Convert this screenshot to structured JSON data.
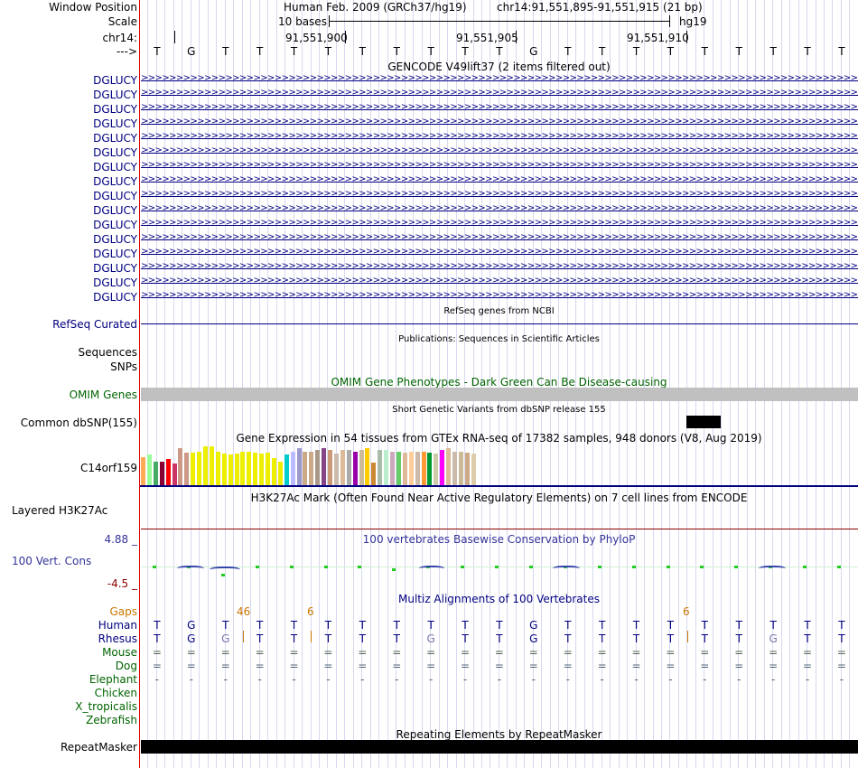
{
  "header": {
    "window_label": "Window Position",
    "assembly": "Human Feb. 2009 (GRCh37/hg19)",
    "region": "chr14:91,551,895-91,551,915 (21 bp)",
    "scale_label": "Scale",
    "scale_text": "10 bases",
    "db": "hg19",
    "chrom_label": "chr14:",
    "ticks": [
      "91,551,900",
      "91,551,905",
      "91,551,910"
    ],
    "strand_label": "--->",
    "bases": [
      "T",
      "G",
      "T",
      "T",
      "T",
      "T",
      "T",
      "T",
      "T",
      "T",
      "T",
      "G",
      "T",
      "T",
      "T",
      "T",
      "T",
      "T",
      "T",
      "T",
      "T"
    ]
  },
  "gencode": {
    "title": "GENCODE V49lift37 (2 items filtered out)",
    "gene_label": "DGLUCY",
    "row_count": 16
  },
  "refseq": {
    "title": "RefSeq genes from NCBI",
    "label": "RefSeq Curated"
  },
  "publications": {
    "title": "Publications: Sequences in Scientific Articles",
    "label1": "Sequences",
    "label2": "SNPs"
  },
  "omim": {
    "title": "OMIM Gene Phenotypes - Dark Green Can Be Disease-causing",
    "label": "OMIM Genes"
  },
  "dbsnp": {
    "title": "Short Genetic Variants from dbSNP release 155",
    "label": "Common dbSNP(155)"
  },
  "gtex": {
    "title": "Gene Expression in 54 tissues from GTEx RNA-seq of 17382 samples, 948 donors (V8, Aug 2019)",
    "label": "C14orf159",
    "bar_heights": [
      0.65,
      0.7,
      0.55,
      0.55,
      0.6,
      0.5,
      0.85,
      0.75,
      0.75,
      0.78,
      0.9,
      0.9,
      0.78,
      0.72,
      0.7,
      0.72,
      0.78,
      0.78,
      0.75,
      0.72,
      0.75,
      0.62,
      0.55,
      0.7,
      0.78,
      0.85,
      0.78,
      0.78,
      0.82,
      0.85,
      0.82,
      0.72,
      0.82,
      0.82,
      0.78,
      0.82,
      0.85,
      0.52,
      0.82,
      0.82,
      0.78,
      0.78,
      0.75,
      0.78,
      0.78,
      0.78,
      0.75,
      0.72,
      0.82,
      0.85,
      0.78,
      0.78,
      0.75,
      0.72
    ],
    "bar_colors": [
      "#ffaa55",
      "#99ff99",
      "#44aa66",
      "#880033",
      "#ff0000",
      "#cc3366",
      "#cc9988",
      "#cc9988",
      "#eeee00",
      "#eeee00",
      "#eeee00",
      "#eeee00",
      "#eeee00",
      "#eeee00",
      "#eeee00",
      "#eeee00",
      "#eeee00",
      "#eeee00",
      "#eeee00",
      "#eeee00",
      "#eeee00",
      "#eeee00",
      "#eeee00",
      "#00cccc",
      "#bbbbff",
      "#9999cc",
      "#ccaa88",
      "#ccaa88",
      "#aa9988",
      "#884488",
      "#cc9977",
      "#ccbbaa",
      "#ddbb99",
      "#aaaaaa",
      "#9900aa",
      "#ccbb99",
      "#ffcc00",
      "#cc8833",
      "#aabbaa",
      "#bbeecc",
      "#ccaabb",
      "#66cc66",
      "#ddbb99",
      "#ffcc99",
      "#ccbbaa",
      "#ff9933",
      "#009933",
      "#ccccaa",
      "#ff00ff",
      "#ddbb99",
      "#ccbbaa",
      "#ccbb99",
      "#ccaa88",
      "#ddccaa"
    ]
  },
  "h3k27ac": {
    "title": "H3K27Ac Mark (Often Found Near Active Regulatory Elements) on 7 cell lines from ENCODE",
    "label": "Layered H3K27Ac"
  },
  "phylop": {
    "title": "100 vertebrates Basewise Conservation by PhyloP",
    "label": "100 Vert. Cons",
    "max": "4.88 _",
    "min": "-4.5 _"
  },
  "multiz": {
    "title": "Multiz Alignments of 100 Vertebrates",
    "gaps_label": "Gaps",
    "gap_values": [
      "46",
      "6",
      "6"
    ],
    "species": [
      "Human",
      "Rhesus",
      "Mouse",
      "Dog",
      "Elephant",
      "Chicken",
      "X_tropicalis",
      "Zebrafish"
    ],
    "human_row": [
      "T",
      "G",
      "T",
      "T",
      "T",
      "T",
      "T",
      "T",
      "T",
      "T",
      "T",
      "G",
      "T",
      "T",
      "T",
      "T",
      "T",
      "T",
      "T",
      "T",
      "T"
    ],
    "rhesus_row": [
      "T",
      "G",
      "G",
      "T",
      "T",
      "T",
      "T",
      "T",
      "G",
      "T",
      "T",
      "G",
      "T",
      "T",
      "T",
      "T",
      "T",
      "T",
      "G",
      "T",
      "T"
    ],
    "mouse_row": [
      "=",
      "=",
      "=",
      "=",
      "=",
      "=",
      "=",
      "=",
      "=",
      "=",
      "=",
      "=",
      "=",
      "=",
      "=",
      "=",
      "=",
      "=",
      "=",
      "=",
      "="
    ],
    "dog_row": [
      "=",
      "=",
      "=",
      "=",
      "=",
      "=",
      "=",
      "=",
      "=",
      "=",
      "=",
      "=",
      "=",
      "=",
      "=",
      "=",
      "=",
      "=",
      "=",
      "=",
      "="
    ],
    "elephant_row": [
      "-",
      "-",
      "-",
      "-",
      "-",
      "-",
      "-",
      "-",
      "-",
      "-",
      "-",
      "-",
      "-",
      "-",
      "-",
      "-",
      "-",
      "-",
      "-",
      "-",
      "-"
    ]
  },
  "repeatmasker": {
    "title": "Repeating Elements by RepeatMasker",
    "label": "RepeatMasker"
  },
  "colors": {
    "navy": "#000080",
    "omim_green": "#006400",
    "gaps_orange": "#c87800",
    "grid": "#d8d8f0",
    "omim_bar": "#c0c0c0"
  }
}
